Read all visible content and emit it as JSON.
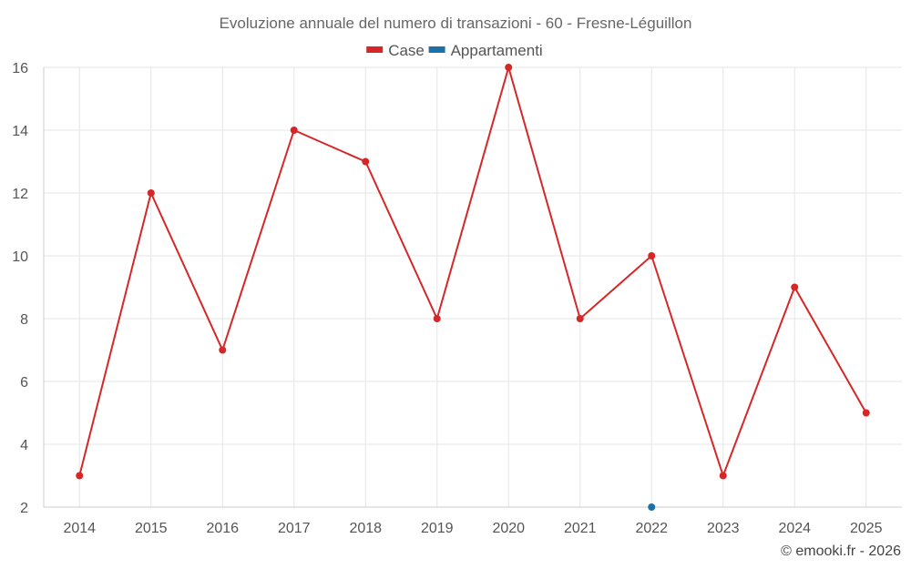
{
  "chart_data": {
    "type": "line",
    "title": "Evoluzione annuale del numero di transazioni - 60 - Fresne-Léguillon",
    "x": [
      "2014",
      "2015",
      "2016",
      "2017",
      "2018",
      "2019",
      "2020",
      "2021",
      "2022",
      "2023",
      "2024",
      "2025"
    ],
    "series": [
      {
        "name": "Case",
        "color": "#d62728",
        "values": [
          3,
          12,
          7,
          14,
          13,
          8,
          16,
          8,
          10,
          3,
          9,
          5
        ]
      },
      {
        "name": "Appartamenti",
        "color": "#1f6fa8",
        "values": [
          null,
          null,
          null,
          null,
          null,
          null,
          null,
          null,
          2,
          null,
          null,
          null
        ]
      }
    ],
    "ylim": [
      2,
      16
    ],
    "yticks": [
      2,
      4,
      6,
      8,
      10,
      12,
      14,
      16
    ],
    "grid": true,
    "legend_position": "top-center",
    "xlabel": "",
    "ylabel": ""
  },
  "credit": "© emooki.fr - 2026"
}
